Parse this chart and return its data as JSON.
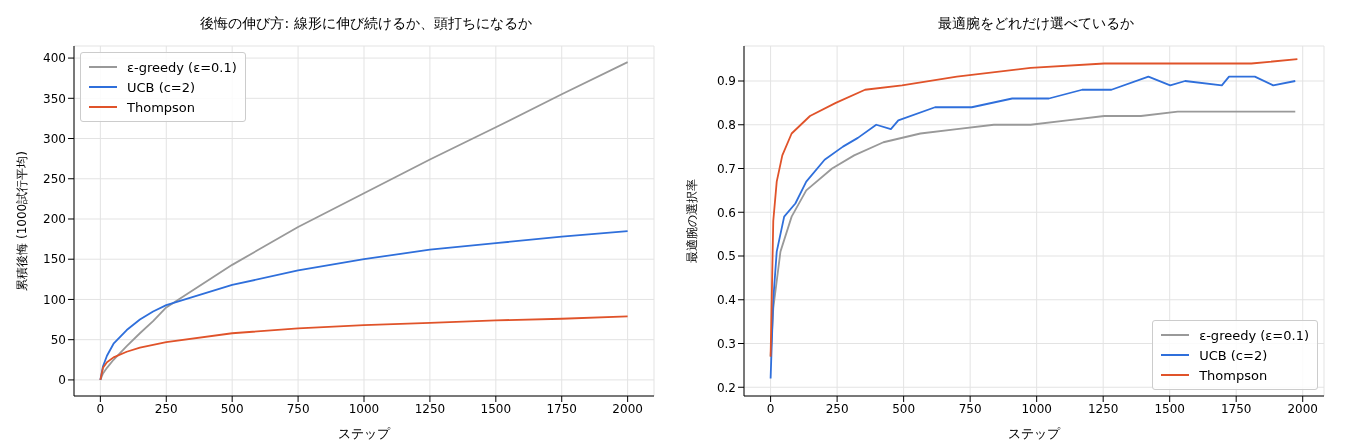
{
  "chart_data": [
    {
      "type": "line",
      "title": "後悔の伸び方: 線形に伸び続けるか、頭打ちになるか",
      "xlabel": "ステップ",
      "ylabel": "累積後悔 (1000試行平均)",
      "xlim": [
        -100,
        2100
      ],
      "ylim": [
        -20,
        415
      ],
      "xticks": [
        0,
        250,
        500,
        750,
        1000,
        1250,
        1500,
        1750,
        2000
      ],
      "yticks": [
        0,
        50,
        100,
        150,
        200,
        250,
        300,
        350,
        400
      ],
      "grid": true,
      "legend": "top left",
      "series": [
        {
          "name": "ε-greedy (ε=0.1)",
          "color": "#999999",
          "x": [
            0,
            10,
            25,
            50,
            100,
            150,
            200,
            250,
            500,
            750,
            1000,
            1250,
            1500,
            1750,
            2000
          ],
          "values": [
            0,
            8,
            15,
            25,
            42,
            58,
            73,
            90,
            143,
            190,
            232,
            274,
            314,
            355,
            395
          ]
        },
        {
          "name": "UCB (c=2)",
          "color": "#2f6fdb",
          "x": [
            0,
            10,
            25,
            50,
            100,
            150,
            200,
            250,
            500,
            750,
            1000,
            1250,
            1500,
            1750,
            2000
          ],
          "values": [
            0,
            17,
            30,
            45,
            62,
            75,
            85,
            93,
            118,
            136,
            150,
            162,
            170,
            178,
            185
          ]
        },
        {
          "name": "Thompson",
          "color": "#e0532a",
          "x": [
            0,
            10,
            25,
            50,
            100,
            150,
            250,
            500,
            750,
            1000,
            1250,
            1500,
            1750,
            2000
          ],
          "values": [
            0,
            15,
            22,
            28,
            35,
            40,
            47,
            58,
            64,
            68,
            71,
            74,
            76,
            79
          ]
        }
      ]
    },
    {
      "type": "line",
      "title": "最適腕をどれだけ選べているか",
      "xlabel": "ステップ",
      "ylabel": "最適腕の選択率",
      "xlim": [
        -100,
        2080
      ],
      "ylim": [
        0.18,
        0.98
      ],
      "xticks": [
        0,
        250,
        500,
        750,
        1000,
        1250,
        1500,
        1750,
        2000
      ],
      "yticks": [
        0.2,
        0.3,
        0.4,
        0.5,
        0.6,
        0.7,
        0.8,
        0.9
      ],
      "grid": true,
      "legend": "bottom right",
      "series": [
        {
          "name": "ε-greedy (ε=0.1)",
          "color": "#999999",
          "x": [
            0,
            10,
            37,
            79,
            134,
            231,
            314,
            424,
            563,
            700,
            839,
            977,
            1115,
            1254,
            1392,
            1530,
            1669,
            1738,
            1876,
            1972
          ],
          "values": [
            0.27,
            0.38,
            0.51,
            0.59,
            0.65,
            0.7,
            0.73,
            0.76,
            0.78,
            0.79,
            0.8,
            0.8,
            0.81,
            0.82,
            0.82,
            0.83,
            0.83,
            0.83,
            0.83,
            0.83
          ]
        },
        {
          "name": "UCB (c=2)",
          "color": "#2f6fdb",
          "x": [
            0,
            10,
            23,
            51,
            93,
            134,
            203,
            272,
            328,
            397,
            452,
            480,
            618,
            756,
            908,
            1046,
            1171,
            1281,
            1420,
            1502,
            1558,
            1696,
            1723,
            1820,
            1889,
            1972
          ],
          "values": [
            0.22,
            0.4,
            0.51,
            0.59,
            0.62,
            0.67,
            0.72,
            0.75,
            0.77,
            0.8,
            0.79,
            0.81,
            0.84,
            0.84,
            0.86,
            0.86,
            0.88,
            0.88,
            0.91,
            0.89,
            0.9,
            0.89,
            0.91,
            0.91,
            0.89,
            0.9
          ]
        },
        {
          "name": "Thompson",
          "color": "#e0532a",
          "x": [
            0,
            10,
            23,
            44,
            79,
            148,
            245,
            355,
            494,
            700,
            977,
            1254,
            1530,
            1807,
            1980
          ],
          "values": [
            0.27,
            0.58,
            0.67,
            0.73,
            0.78,
            0.82,
            0.85,
            0.88,
            0.89,
            0.91,
            0.93,
            0.94,
            0.94,
            0.94,
            0.95
          ]
        }
      ]
    }
  ]
}
